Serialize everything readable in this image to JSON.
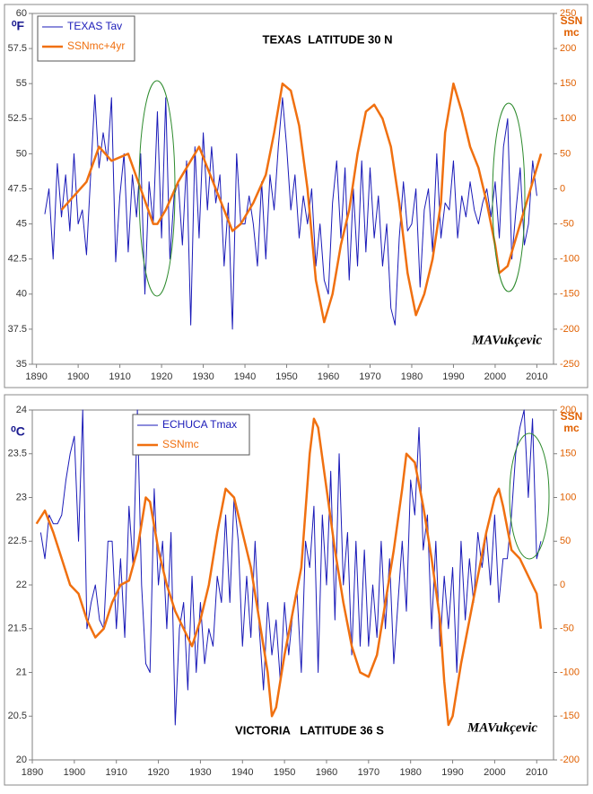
{
  "chart_data": [
    {
      "type": "line",
      "title": "TEXAS  LATITUDE 30 N",
      "annotations": [
        "MAVukçevic"
      ],
      "y_label": "⁰F",
      "y2_label": [
        "SSN",
        "mc"
      ],
      "legend": "upper left",
      "xlim": [
        1889,
        2014
      ],
      "xticks": [
        1890,
        1900,
        1910,
        1920,
        1930,
        1940,
        1950,
        1960,
        1970,
        1980,
        1990,
        2000,
        2010
      ],
      "ylim": [
        35,
        60
      ],
      "yticks": [
        35,
        37.5,
        40,
        42.5,
        45,
        47.5,
        50,
        52.5,
        55,
        57.5,
        60
      ],
      "y2lim": [
        -250,
        250
      ],
      "y2ticks": [
        -250,
        -200,
        -150,
        -100,
        -50,
        0,
        50,
        100,
        150,
        200,
        250
      ],
      "series": [
        {
          "name": "TEXAS Tav",
          "color": "#1a1ab8",
          "x": [
            1892,
            1893,
            1894,
            1895,
            1896,
            1897,
            1898,
            1899,
            1900,
            1901,
            1902,
            1903,
            1904,
            1905,
            1906,
            1907,
            1908,
            1909,
            1910,
            1911,
            1912,
            1913,
            1914,
            1915,
            1916,
            1917,
            1918,
            1919,
            1920,
            1921,
            1922,
            1923,
            1924,
            1925,
            1926,
            1927,
            1928,
            1929,
            1930,
            1931,
            1932,
            1933,
            1934,
            1935,
            1936,
            1937,
            1938,
            1939,
            1940,
            1941,
            1942,
            1943,
            1944,
            1945,
            1946,
            1947,
            1948,
            1949,
            1950,
            1951,
            1952,
            1953,
            1954,
            1955,
            1956,
            1957,
            1958,
            1959,
            1960,
            1961,
            1962,
            1963,
            1964,
            1965,
            1966,
            1967,
            1968,
            1969,
            1970,
            1971,
            1972,
            1973,
            1974,
            1975,
            1976,
            1977,
            1978,
            1979,
            1980,
            1981,
            1982,
            1983,
            1984,
            1985,
            1986,
            1987,
            1988,
            1989,
            1990,
            1991,
            1992,
            1993,
            1994,
            1995,
            1996,
            1997,
            1998,
            1999,
            2000,
            2001,
            2002,
            2003,
            2004,
            2005,
            2006,
            2007,
            2008,
            2009,
            2010
          ],
          "values": [
            45.7,
            47.5,
            42.5,
            49.3,
            45.5,
            48.5,
            44.5,
            50,
            45,
            46,
            42.8,
            48.5,
            54.2,
            49,
            51.5,
            49.5,
            54,
            42.3,
            47,
            50,
            43,
            48.5,
            45.5,
            50,
            40,
            48,
            45,
            53,
            44,
            54,
            42.5,
            47,
            48,
            43.5,
            49.5,
            37.8,
            50.5,
            44,
            51.5,
            46,
            50.5,
            46.5,
            48.5,
            42,
            46.5,
            37.5,
            50,
            45,
            45,
            47,
            45,
            42,
            48,
            42.5,
            48.5,
            46,
            50.5,
            54,
            50.5,
            46,
            48.5,
            44,
            47,
            45,
            47.5,
            42,
            45,
            41,
            40,
            46.5,
            49.5,
            44,
            49,
            41,
            47.5,
            42,
            49.5,
            43,
            49,
            44,
            47,
            42,
            45,
            39,
            37.8,
            44,
            48,
            44.5,
            45,
            47.5,
            40.5,
            46,
            47.5,
            43,
            50,
            44,
            46.5,
            46,
            49.5,
            44,
            47,
            45.5,
            48,
            46,
            45,
            46.5,
            47.5,
            45.5,
            48,
            44,
            50.5,
            52.5,
            42.5,
            46,
            49,
            43.5,
            45,
            49.5,
            47
          ]
        },
        {
          "name": "SSNmc+4yr",
          "color": "#f07010",
          "axis": "y2",
          "x": [
            1896,
            1899,
            1902,
            1905,
            1908,
            1912,
            1915,
            1918,
            1919,
            1921,
            1924,
            1926,
            1928,
            1929,
            1931,
            1933,
            1935,
            1937,
            1939,
            1942,
            1945,
            1947,
            1949,
            1951,
            1953,
            1955,
            1957,
            1959,
            1961,
            1963,
            1965,
            1967,
            1969,
            1971,
            1973,
            1975,
            1977,
            1979,
            1981,
            1983,
            1985,
            1987,
            1988,
            1990,
            1992,
            1994,
            1996,
            1998,
            2000,
            2001,
            2003,
            2005,
            2007,
            2009,
            2011
          ],
          "values": [
            -30,
            -10,
            10,
            60,
            40,
            50,
            0,
            -50,
            -50,
            -30,
            10,
            30,
            50,
            60,
            30,
            0,
            -30,
            -60,
            -50,
            -20,
            20,
            80,
            150,
            140,
            90,
            0,
            -130,
            -190,
            -150,
            -80,
            -30,
            50,
            110,
            120,
            100,
            60,
            -20,
            -120,
            -180,
            -150,
            -100,
            -20,
            80,
            150,
            110,
            60,
            30,
            -20,
            -80,
            -120,
            -110,
            -70,
            -30,
            10,
            50
          ]
        }
      ]
    },
    {
      "type": "line",
      "title": "VICTORIA   LATITUDE 36 S",
      "annotations": [
        "MAVukçevic"
      ],
      "y_label": "⁰C",
      "y2_label": [
        "SSN",
        "mc"
      ],
      "legend": "upper left",
      "xlim": [
        1890,
        2014
      ],
      "xticks": [
        1890,
        1900,
        1910,
        1920,
        1930,
        1940,
        1950,
        1960,
        1970,
        1980,
        1990,
        2000,
        2010
      ],
      "ylim": [
        20,
        24
      ],
      "yticks": [
        20,
        20.5,
        21,
        21.5,
        22,
        22.5,
        23,
        23.5,
        24
      ],
      "y2lim": [
        -200,
        200
      ],
      "y2ticks": [
        -200,
        -150,
        -100,
        -50,
        0,
        50,
        100,
        150,
        200
      ],
      "series": [
        {
          "name": "ECHUCA Tmax",
          "color": "#1a1ab8",
          "x": [
            1892,
            1893,
            1894,
            1895,
            1896,
            1897,
            1898,
            1899,
            1900,
            1901,
            1902,
            1903,
            1904,
            1905,
            1906,
            1907,
            1908,
            1909,
            1910,
            1911,
            1912,
            1913,
            1914,
            1915,
            1916,
            1917,
            1918,
            1919,
            1920,
            1921,
            1922,
            1923,
            1924,
            1925,
            1926,
            1927,
            1928,
            1929,
            1930,
            1931,
            1932,
            1933,
            1934,
            1935,
            1936,
            1937,
            1938,
            1939,
            1940,
            1941,
            1942,
            1943,
            1944,
            1945,
            1946,
            1947,
            1948,
            1949,
            1950,
            1951,
            1952,
            1953,
            1954,
            1955,
            1956,
            1957,
            1958,
            1959,
            1960,
            1961,
            1962,
            1963,
            1964,
            1965,
            1966,
            1967,
            1968,
            1969,
            1970,
            1971,
            1972,
            1973,
            1974,
            1975,
            1976,
            1977,
            1978,
            1979,
            1980,
            1981,
            1982,
            1983,
            1984,
            1985,
            1986,
            1987,
            1988,
            1989,
            1990,
            1991,
            1992,
            1993,
            1994,
            1995,
            1996,
            1997,
            1998,
            1999,
            2000,
            2001,
            2002,
            2003,
            2004,
            2005,
            2006,
            2007,
            2008,
            2009,
            2010,
            2011
          ],
          "values": [
            22.6,
            22.3,
            22.8,
            22.7,
            22.7,
            22.8,
            23.2,
            23.5,
            23.7,
            22.5,
            24,
            21.5,
            21.8,
            22,
            21.6,
            21.5,
            22.5,
            22.5,
            21.5,
            22.3,
            21.4,
            22.9,
            22.2,
            24,
            22,
            21.1,
            21,
            23.1,
            22,
            22.5,
            21.5,
            22.6,
            20.4,
            21.5,
            21.8,
            20.8,
            22.1,
            21,
            21.8,
            21.1,
            21.5,
            21.3,
            22.1,
            21.8,
            22.8,
            21.8,
            23,
            22.5,
            21.3,
            22.1,
            21.4,
            22.5,
            21.5,
            20.8,
            21.8,
            21.2,
            21.6,
            20.9,
            21.8,
            21.2,
            21.7,
            21.9,
            21,
            22.5,
            22.2,
            22.9,
            21,
            22.8,
            22,
            23.3,
            21.6,
            23.5,
            22,
            22.6,
            21.2,
            22.5,
            21.3,
            22.4,
            21.3,
            22,
            21.4,
            22.5,
            21.5,
            22.3,
            21.1,
            21.8,
            22.5,
            21.7,
            23.2,
            22.8,
            23.8,
            22.4,
            22.8,
            21.5,
            22.5,
            21.3,
            22.1,
            21.5,
            22.2,
            21,
            22.5,
            21.6,
            22.3,
            21.8,
            22.6,
            22.2,
            22.6,
            22,
            22.8,
            21.8,
            22.3,
            22.3,
            22.8,
            23.5,
            23.8,
            24,
            23,
            23.9,
            22.3,
            22.5
          ]
        },
        {
          "name": "SSNmc",
          "color": "#f07010",
          "axis": "y2",
          "x": [
            1891,
            1893,
            1895,
            1897,
            1899,
            1901,
            1903,
            1905,
            1907,
            1909,
            1911,
            1913,
            1915,
            1917,
            1918,
            1920,
            1922,
            1924,
            1926,
            1928,
            1930,
            1932,
            1934,
            1936,
            1938,
            1940,
            1942,
            1944,
            1946,
            1947,
            1948,
            1950,
            1952,
            1954,
            1956,
            1957,
            1958,
            1960,
            1962,
            1964,
            1966,
            1968,
            1970,
            1972,
            1974,
            1976,
            1978,
            1979,
            1981,
            1983,
            1985,
            1987,
            1988,
            1989,
            1990,
            1992,
            1994,
            1996,
            1998,
            2000,
            2001,
            2002,
            2004,
            2006,
            2008,
            2010,
            2011
          ],
          "values": [
            70,
            85,
            60,
            30,
            0,
            -10,
            -40,
            -60,
            -50,
            -20,
            0,
            5,
            40,
            100,
            95,
            40,
            0,
            -30,
            -50,
            -70,
            -40,
            0,
            60,
            110,
            100,
            60,
            20,
            -40,
            -100,
            -150,
            -140,
            -80,
            -30,
            20,
            150,
            190,
            180,
            110,
            40,
            -20,
            -70,
            -100,
            -105,
            -80,
            -20,
            40,
            110,
            150,
            140,
            90,
            30,
            -40,
            -110,
            -160,
            -150,
            -90,
            -40,
            10,
            60,
            100,
            110,
            90,
            40,
            30,
            10,
            -10,
            -50
          ]
        }
      ]
    }
  ]
}
